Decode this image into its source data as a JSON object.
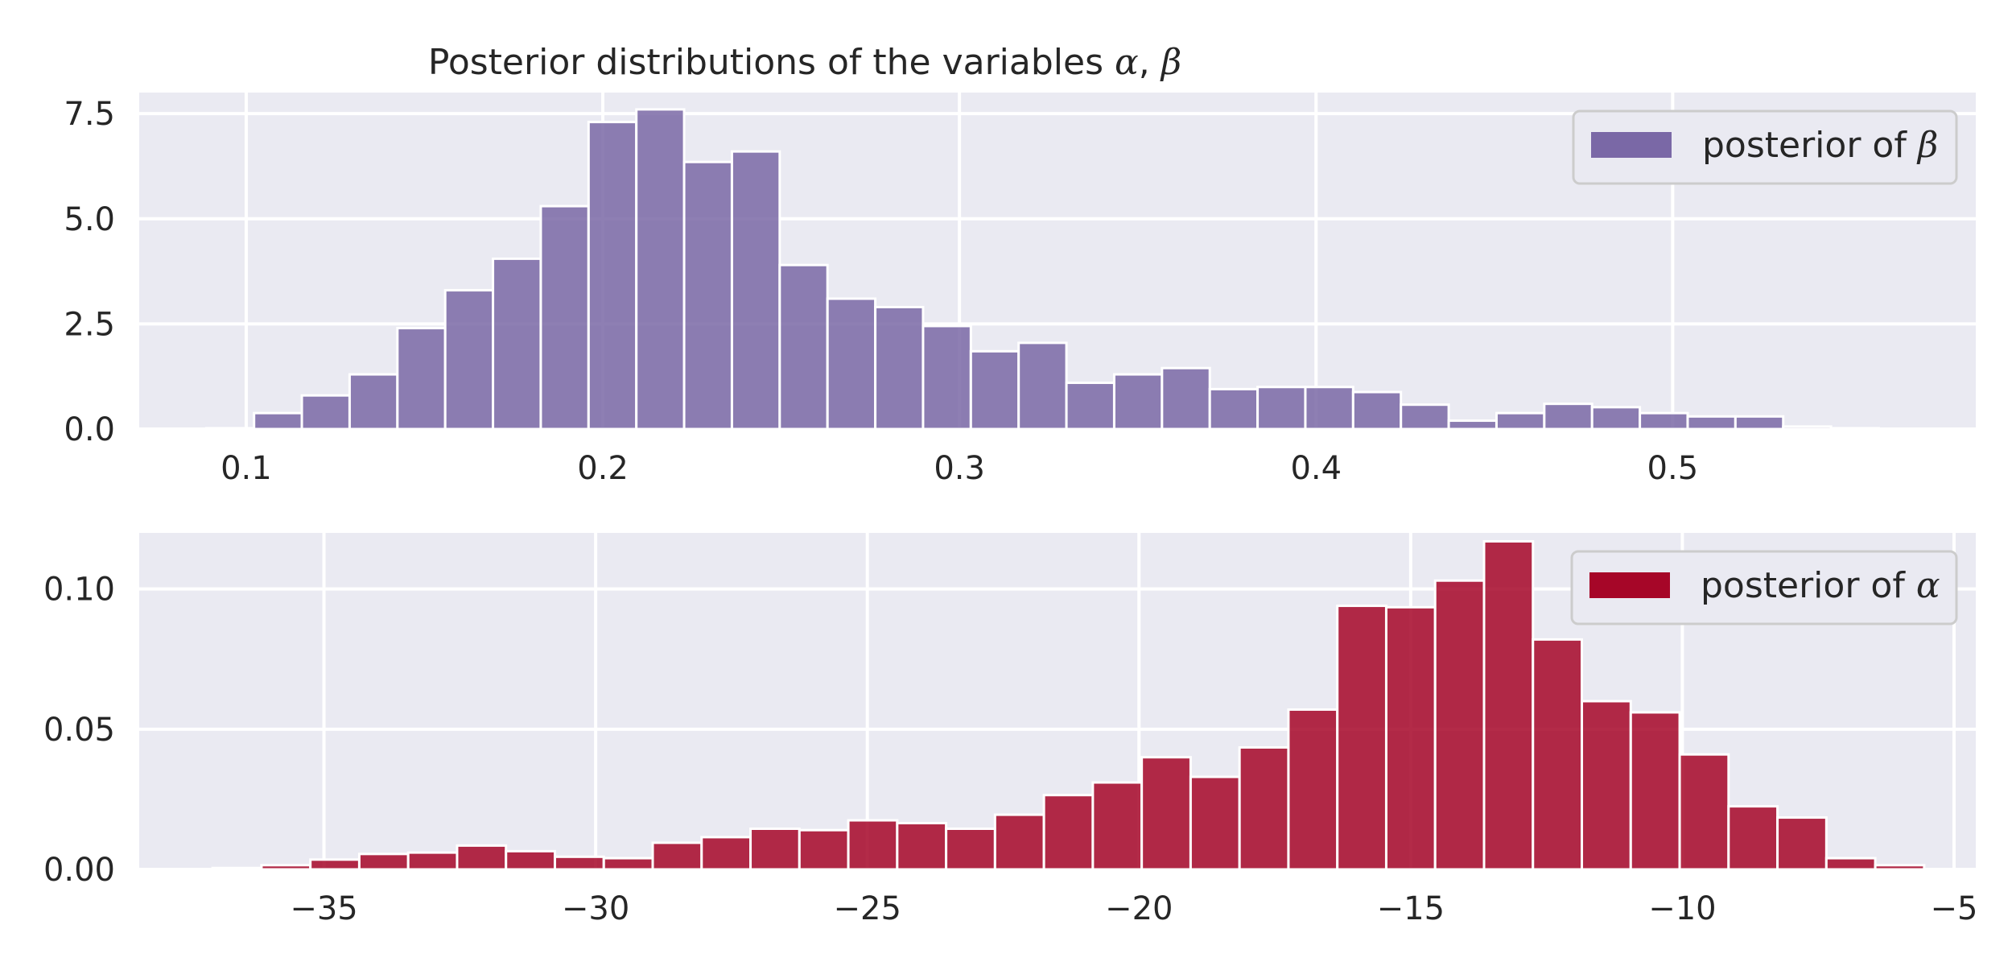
{
  "title": {
    "prefix": "Posterior distributions of the variables ",
    "alpha": "α",
    "sep": ", ",
    "beta": "β"
  },
  "colors": {
    "background": "#eaeaf2",
    "grid": "#ffffff",
    "beta_fill": "#7a68a6",
    "alpha_fill": "#a60628"
  },
  "chart_data": [
    {
      "type": "histogram",
      "legend": {
        "prefix": "posterior of ",
        "symbol": "β",
        "placement": "upper right"
      },
      "grid": true,
      "xlim": [
        0.07,
        0.585
      ],
      "ylim": [
        0,
        8.0
      ],
      "xticks": [
        0.1,
        0.2,
        0.3,
        0.4,
        0.5
      ],
      "xtick_labels": [
        "0.1",
        "0.2",
        "0.3",
        "0.4",
        "0.5"
      ],
      "yticks": [
        0,
        2.5,
        5.0,
        7.5
      ],
      "ytick_labels": [
        "0.0",
        "2.5",
        "5.0",
        "7.5"
      ],
      "bin_edges": [
        0.0888,
        0.1022,
        0.1156,
        0.129,
        0.1424,
        0.1558,
        0.1692,
        0.1826,
        0.196,
        0.2094,
        0.2228,
        0.2362,
        0.2496,
        0.263,
        0.2764,
        0.2898,
        0.3032,
        0.3166,
        0.33,
        0.3434,
        0.3568,
        0.3702,
        0.3836,
        0.397,
        0.4104,
        0.4238,
        0.4372,
        0.4506,
        0.464,
        0.4774,
        0.4908,
        0.5042,
        0.5176,
        0.531,
        0.5444,
        0.5578
      ],
      "values": [
        0.02,
        0.38,
        0.8,
        1.3,
        2.4,
        3.3,
        4.05,
        5.3,
        7.3,
        7.6,
        6.35,
        6.6,
        3.9,
        3.1,
        2.9,
        2.45,
        1.85,
        2.05,
        1.1,
        1.3,
        1.45,
        0.95,
        1.0,
        1.0,
        0.88,
        0.58,
        0.2,
        0.38,
        0.6,
        0.52,
        0.38,
        0.3,
        0.3,
        0.06,
        0.02
      ]
    },
    {
      "type": "histogram",
      "legend": {
        "prefix": "posterior of ",
        "symbol": "α",
        "placement": "upper right"
      },
      "grid": true,
      "xlim": [
        -38.4,
        -4.6
      ],
      "ylim": [
        0,
        0.12
      ],
      "xticks": [
        -35,
        -30,
        -25,
        -20,
        -15,
        -10,
        -5
      ],
      "xtick_labels": [
        "−35",
        "−30",
        "−25",
        "−20",
        "−15",
        "−10",
        "−5"
      ],
      "yticks": [
        0,
        0.05,
        0.1
      ],
      "ytick_labels": [
        "0.00",
        "0.05",
        "0.10"
      ],
      "bin_edges": [
        -37.05,
        -36.15,
        -35.25,
        -34.35,
        -33.45,
        -32.55,
        -31.65,
        -30.75,
        -29.85,
        -28.95,
        -28.05,
        -27.15,
        -26.25,
        -25.35,
        -24.45,
        -23.55,
        -22.65,
        -21.75,
        -20.85,
        -19.95,
        -19.05,
        -18.15,
        -17.25,
        -16.35,
        -15.45,
        -14.55,
        -13.65,
        -12.75,
        -11.85,
        -10.95,
        -10.05,
        -9.15,
        -8.25,
        -7.35,
        -6.45,
        -5.55
      ],
      "values": [
        0.0005,
        0.0015,
        0.0035,
        0.0055,
        0.006,
        0.0085,
        0.0065,
        0.0045,
        0.004,
        0.0095,
        0.0115,
        0.0145,
        0.014,
        0.0175,
        0.0165,
        0.0145,
        0.0195,
        0.0265,
        0.031,
        0.04,
        0.033,
        0.0435,
        0.057,
        0.094,
        0.0935,
        0.103,
        0.117,
        0.082,
        0.06,
        0.056,
        0.041,
        0.0225,
        0.0185,
        0.004,
        0.0015
      ]
    }
  ]
}
